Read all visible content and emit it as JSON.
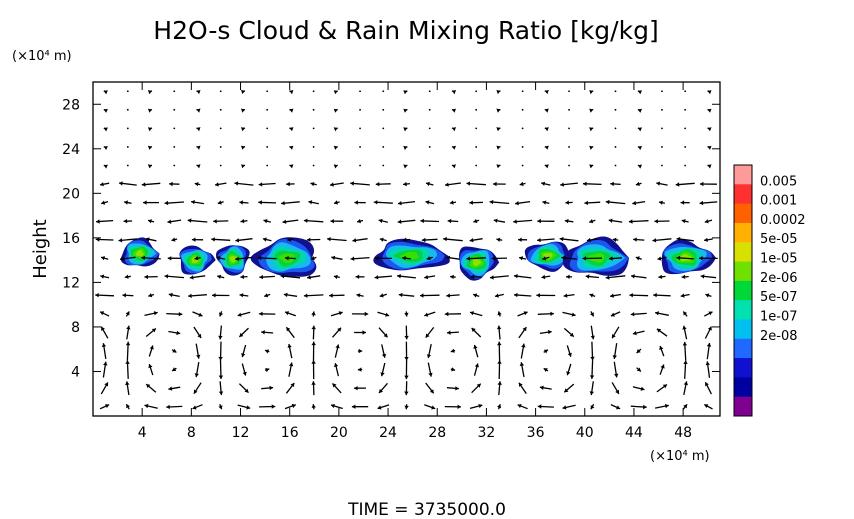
{
  "chart_data": {
    "type": "heatmap",
    "title": "H2O-s Cloud & Rain Mixing Ratio [kg/kg]",
    "xlabel": "",
    "ylabel": "Height",
    "x_unit": "(×10⁴ m)",
    "y_unit": "(×10⁴ m)",
    "xlim": [
      0,
      51
    ],
    "ylim": [
      0,
      30
    ],
    "xticks": [
      4,
      8,
      12,
      16,
      20,
      24,
      28,
      32,
      36,
      40,
      44,
      48
    ],
    "yticks": [
      4,
      8,
      12,
      16,
      20,
      24,
      28
    ],
    "time_label": "TIME = 3735000.0",
    "colorbar": {
      "labels": [
        "0.005",
        "0.001",
        "0.0002",
        "5e-05",
        "1e-05",
        "2e-06",
        "5e-07",
        "1e-07",
        "2e-08"
      ],
      "colors": [
        "#ff9a9a",
        "#ff3030",
        "#ff6000",
        "#ffb000",
        "#d8e000",
        "#70e000",
        "#00d838",
        "#00e0b0",
        "#00c0f0",
        "#2068ff",
        "#1010d0",
        "#0000a0",
        "#800090"
      ]
    },
    "cloud_cells": [
      {
        "x": 3.8,
        "y": 14.6,
        "w": 3.0,
        "h": 2.6,
        "level": 4
      },
      {
        "x": 8.3,
        "y": 14.0,
        "w": 2.8,
        "h": 2.6,
        "level": 4
      },
      {
        "x": 11.4,
        "y": 14.1,
        "w": 2.6,
        "h": 2.8,
        "level": 4
      },
      {
        "x": 15.8,
        "y": 14.2,
        "w": 5.2,
        "h": 3.6,
        "level": 3
      },
      {
        "x": 25.8,
        "y": 14.4,
        "w": 6.0,
        "h": 2.8,
        "level": 3
      },
      {
        "x": 31.2,
        "y": 13.8,
        "w": 3.2,
        "h": 3.0,
        "level": 4
      },
      {
        "x": 37.0,
        "y": 14.4,
        "w": 3.6,
        "h": 2.6,
        "level": 4
      },
      {
        "x": 41.0,
        "y": 14.2,
        "w": 5.4,
        "h": 3.4,
        "level": 3
      },
      {
        "x": 48.2,
        "y": 14.2,
        "w": 4.4,
        "h": 3.0,
        "level": 4
      }
    ]
  }
}
